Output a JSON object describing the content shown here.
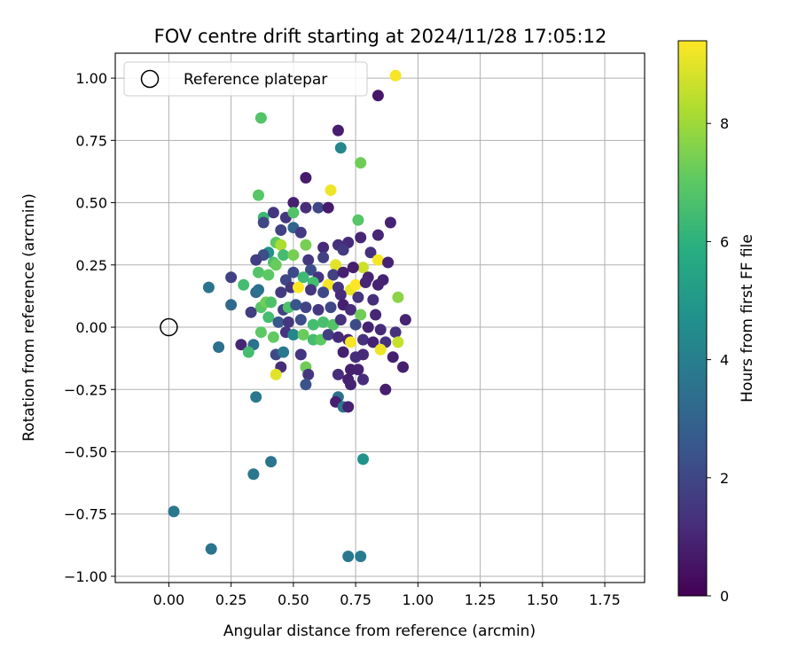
{
  "chart_data": {
    "type": "scatter",
    "title": "FOV centre drift starting at 2024/11/28 17:05:12",
    "xlabel": "Angular distance from reference (arcmin)",
    "ylabel": "Rotation from reference (arcmin)",
    "xlim": [
      -0.215,
      1.91
    ],
    "ylim": [
      -1.025,
      1.1
    ],
    "xticks": [
      0.0,
      0.25,
      0.5,
      0.75,
      1.0,
      1.25,
      1.5,
      1.75
    ],
    "xtick_labels": [
      "0.00",
      "0.25",
      "0.50",
      "0.75",
      "1.00",
      "1.25",
      "1.50",
      "1.75"
    ],
    "yticks": [
      1.0,
      0.75,
      0.5,
      0.25,
      0.0,
      -0.25,
      -0.5,
      -0.75,
      -1.0
    ],
    "ytick_labels": [
      "1.00",
      "0.75",
      "0.50",
      "0.25",
      "0.00",
      "−0.25",
      "−0.50",
      "−0.75",
      "−1.00"
    ],
    "grid": true,
    "legend": {
      "placement": "top-left",
      "entries": [
        "Reference platepar"
      ]
    },
    "reference_point": {
      "x": 0.0,
      "y": 0.0,
      "label": "Reference platepar"
    },
    "colorbar": {
      "label": "Hours from first FF file",
      "colormap": "viridis",
      "range": [
        0,
        9.4
      ],
      "ticks": [
        0,
        2,
        4,
        6,
        8
      ],
      "tick_labels": [
        "0",
        "2",
        "4",
        "6",
        "8"
      ]
    },
    "series": [
      {
        "points": [
          [
            0.91,
            1.01,
            9.3
          ],
          [
            0.37,
            0.84,
            6.8
          ],
          [
            0.84,
            0.93,
            0.6
          ],
          [
            0.68,
            0.79,
            0.8
          ],
          [
            0.69,
            0.72,
            4.3
          ],
          [
            0.77,
            0.66,
            7.3
          ],
          [
            0.55,
            0.6,
            0.7
          ],
          [
            0.65,
            0.55,
            9.2
          ],
          [
            0.36,
            0.53,
            6.9
          ],
          [
            0.76,
            0.43,
            6.9
          ],
          [
            0.38,
            0.44,
            6.3
          ],
          [
            0.42,
            0.46,
            1.5
          ],
          [
            0.47,
            0.44,
            1.5
          ],
          [
            0.5,
            0.5,
            0.8
          ],
          [
            0.55,
            0.48,
            1.2
          ],
          [
            0.6,
            0.48,
            2.0
          ],
          [
            0.64,
            0.48,
            0.7
          ],
          [
            0.5,
            0.46,
            6.8
          ],
          [
            0.89,
            0.42,
            0.9
          ],
          [
            0.38,
            0.42,
            2.0
          ],
          [
            0.45,
            0.39,
            1.8
          ],
          [
            0.5,
            0.4,
            3.0
          ],
          [
            0.53,
            0.38,
            1.6
          ],
          [
            0.84,
            0.37,
            1.0
          ],
          [
            0.77,
            0.36,
            1.0
          ],
          [
            0.72,
            0.34,
            1.1
          ],
          [
            0.68,
            0.33,
            1.3
          ],
          [
            0.43,
            0.34,
            7.0
          ],
          [
            0.45,
            0.33,
            8.2
          ],
          [
            0.55,
            0.33,
            7.4
          ],
          [
            0.62,
            0.32,
            1.1
          ],
          [
            0.7,
            0.31,
            1.6
          ],
          [
            0.81,
            0.3,
            1.3
          ],
          [
            0.4,
            0.3,
            4.8
          ],
          [
            0.46,
            0.29,
            6.5
          ],
          [
            0.38,
            0.29,
            2.2
          ],
          [
            0.35,
            0.27,
            1.7
          ],
          [
            0.42,
            0.26,
            6.7
          ],
          [
            0.5,
            0.29,
            7.4
          ],
          [
            0.56,
            0.27,
            1.5
          ],
          [
            0.62,
            0.28,
            1.8
          ],
          [
            0.67,
            0.25,
            9.0
          ],
          [
            0.78,
            0.24,
            8.7
          ],
          [
            0.84,
            0.27,
            9.3
          ],
          [
            0.88,
            0.26,
            0.9
          ],
          [
            0.74,
            0.24,
            0.8
          ],
          [
            0.57,
            0.23,
            2.2
          ],
          [
            0.43,
            0.25,
            7.2
          ],
          [
            0.5,
            0.22,
            2.1
          ],
          [
            0.6,
            0.2,
            1.4
          ],
          [
            0.66,
            0.21,
            1.8
          ],
          [
            0.7,
            0.22,
            0.8
          ],
          [
            0.8,
            0.2,
            0.9
          ],
          [
            0.86,
            0.19,
            0.9
          ],
          [
            0.36,
            0.22,
            6.8
          ],
          [
            0.4,
            0.21,
            7.0
          ],
          [
            0.47,
            0.19,
            2.0
          ],
          [
            0.54,
            0.2,
            6.4
          ],
          [
            0.58,
            0.18,
            6.5
          ],
          [
            0.64,
            0.17,
            9.3
          ],
          [
            0.68,
            0.16,
            1.4
          ],
          [
            0.73,
            0.15,
            9.1
          ],
          [
            0.75,
            0.17,
            9.4
          ],
          [
            0.79,
            0.18,
            1.0
          ],
          [
            0.84,
            0.17,
            0.9
          ],
          [
            0.25,
            0.2,
            1.8
          ],
          [
            0.16,
            0.16,
            3.6
          ],
          [
            0.3,
            0.17,
            6.5
          ],
          [
            0.35,
            0.14,
            3.2
          ],
          [
            0.36,
            0.15,
            3.5
          ],
          [
            0.45,
            0.14,
            1.6
          ],
          [
            0.49,
            0.16,
            1.5
          ],
          [
            0.52,
            0.16,
            9.4
          ],
          [
            0.57,
            0.15,
            1.5
          ],
          [
            0.62,
            0.14,
            2.1
          ],
          [
            0.69,
            0.13,
            1.1
          ],
          [
            0.76,
            0.12,
            1.4
          ],
          [
            0.82,
            0.11,
            1.2
          ],
          [
            0.92,
            0.12,
            7.7
          ],
          [
            0.25,
            0.09,
            3.2
          ],
          [
            0.37,
            0.08,
            6.9
          ],
          [
            0.39,
            0.1,
            7.3
          ],
          [
            0.41,
            0.1,
            6.7
          ],
          [
            0.46,
            0.07,
            1.8
          ],
          [
            0.48,
            0.08,
            6.7
          ],
          [
            0.51,
            0.09,
            2.5
          ],
          [
            0.55,
            0.08,
            1.9
          ],
          [
            0.6,
            0.07,
            1.5
          ],
          [
            0.65,
            0.08,
            2.0
          ],
          [
            0.7,
            0.09,
            0.8
          ],
          [
            0.73,
            0.07,
            1.2
          ],
          [
            0.77,
            0.05,
            7.3
          ],
          [
            0.83,
            0.05,
            1.0
          ],
          [
            0.95,
            0.03,
            0.9
          ],
          [
            0.33,
            0.06,
            1.7
          ],
          [
            0.4,
            0.04,
            6.5
          ],
          [
            0.44,
            0.02,
            2.6
          ],
          [
            0.48,
            0.02,
            1.5
          ],
          [
            0.53,
            0.03,
            2.2
          ],
          [
            0.58,
            0.01,
            6.5
          ],
          [
            0.62,
            0.02,
            6.6
          ],
          [
            0.66,
            0.01,
            6.8
          ],
          [
            0.69,
            0.03,
            1.3
          ],
          [
            0.75,
            0.01,
            2.1
          ],
          [
            0.8,
            0.0,
            0.9
          ],
          [
            0.85,
            -0.01,
            1.1
          ],
          [
            0.91,
            -0.02,
            1.3
          ],
          [
            0.37,
            -0.02,
            7.0
          ],
          [
            0.42,
            -0.04,
            7.1
          ],
          [
            0.47,
            -0.02,
            1.4
          ],
          [
            0.5,
            -0.03,
            4.3
          ],
          [
            0.54,
            -0.03,
            7.2
          ],
          [
            0.58,
            -0.05,
            6.5
          ],
          [
            0.61,
            -0.05,
            7.0
          ],
          [
            0.64,
            -0.03,
            1.7
          ],
          [
            0.68,
            -0.04,
            1.1
          ],
          [
            0.72,
            -0.05,
            1.0
          ],
          [
            0.73,
            -0.06,
            9.3
          ],
          [
            0.78,
            -0.05,
            1.3
          ],
          [
            0.82,
            -0.06,
            0.9
          ],
          [
            0.87,
            -0.06,
            1.3
          ],
          [
            0.92,
            -0.06,
            8.6
          ],
          [
            0.2,
            -0.08,
            3.4
          ],
          [
            0.29,
            -0.07,
            1.0
          ],
          [
            0.34,
            -0.07,
            3.5
          ],
          [
            0.32,
            -0.1,
            6.5
          ],
          [
            0.43,
            -0.11,
            2.1
          ],
          [
            0.46,
            -0.1,
            3.8
          ],
          [
            0.53,
            -0.11,
            1.4
          ],
          [
            0.7,
            -0.1,
            0.8
          ],
          [
            0.75,
            -0.12,
            1.2
          ],
          [
            0.78,
            -0.11,
            1.1
          ],
          [
            0.85,
            -0.09,
            9.2
          ],
          [
            0.9,
            -0.12,
            0.8
          ],
          [
            0.94,
            -0.16,
            0.8
          ],
          [
            0.45,
            -0.16,
            1.2
          ],
          [
            0.55,
            -0.16,
            7.3
          ],
          [
            0.73,
            -0.17,
            0.8
          ],
          [
            0.76,
            -0.17,
            0.9
          ],
          [
            0.43,
            -0.19,
            9.0
          ],
          [
            0.56,
            -0.19,
            1.5
          ],
          [
            0.68,
            -0.19,
            1.2
          ],
          [
            0.72,
            -0.21,
            0.8
          ],
          [
            0.78,
            -0.21,
            1.2
          ],
          [
            0.55,
            -0.23,
            2.4
          ],
          [
            0.73,
            -0.23,
            0.9
          ],
          [
            0.87,
            -0.25,
            0.8
          ],
          [
            0.35,
            -0.28,
            3.7
          ],
          [
            0.68,
            -0.28,
            3.5
          ],
          [
            0.67,
            -0.3,
            0.8
          ],
          [
            0.7,
            -0.32,
            3.7
          ],
          [
            0.72,
            -0.32,
            0.9
          ],
          [
            0.41,
            -0.54,
            3.6
          ],
          [
            0.34,
            -0.59,
            3.7
          ],
          [
            0.78,
            -0.53,
            4.8
          ],
          [
            0.02,
            -0.74,
            3.7
          ],
          [
            0.17,
            -0.89,
            3.6
          ],
          [
            0.72,
            -0.92,
            3.8
          ],
          [
            0.77,
            -0.92,
            3.9
          ]
        ]
      }
    ]
  }
}
